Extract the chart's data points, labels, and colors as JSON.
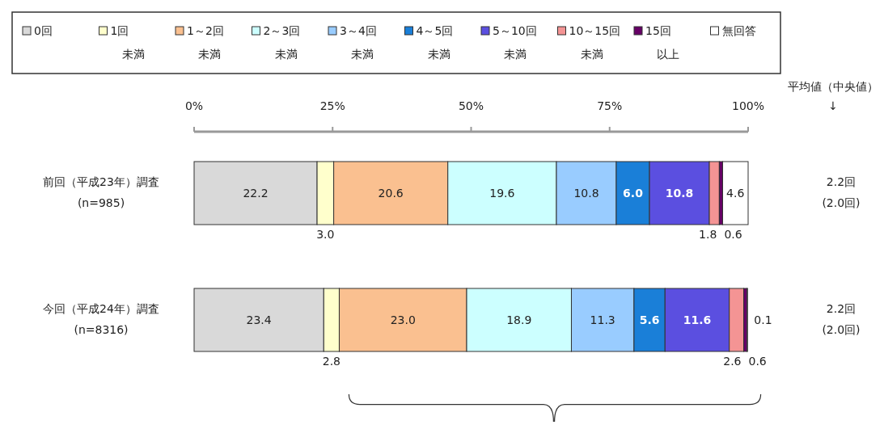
{
  "chart_data": {
    "type": "bar",
    "orientation": "horizontal",
    "stacked": true,
    "legend": "top",
    "grid": false,
    "categories": [
      "前回（平成23年）調査\n(n=985)",
      "今回（平成24年）調査\n(n=8316)"
    ],
    "xlim": [
      0,
      100
    ],
    "xticks": [
      {
        "value": 0,
        "label": "0%"
      },
      {
        "value": 25,
        "label": "25%"
      },
      {
        "value": 50,
        "label": "50%"
      },
      {
        "value": 75,
        "label": "75%"
      },
      {
        "value": 100,
        "label": "100%"
      }
    ],
    "series": [
      {
        "name": "0回",
        "color": "#d9d9d9",
        "values": [
          22.2,
          23.4
        ],
        "value_labels": [
          "22.2",
          "23.4"
        ]
      },
      {
        "name": "1回未満",
        "color": "#ffffcc",
        "values": [
          3.0,
          2.8
        ],
        "value_labels": [
          "3.0",
          "2.8"
        ]
      },
      {
        "name": "1～2回未満",
        "color": "#fac090",
        "values": [
          20.6,
          23.0
        ],
        "value_labels": [
          "20.6",
          "23.0"
        ]
      },
      {
        "name": "2～3回未満",
        "color": "#ccffff",
        "values": [
          19.6,
          18.9
        ],
        "value_labels": [
          "19.6",
          "18.9"
        ]
      },
      {
        "name": "3～4回未満",
        "color": "#99ccff",
        "values": [
          10.8,
          11.3
        ],
        "value_labels": [
          "10.8",
          "11.3"
        ]
      },
      {
        "name": "4～5回未満",
        "color": "#1a7fd8",
        "values": [
          6.0,
          5.6
        ],
        "value_labels": [
          "6.0",
          "5.6"
        ]
      },
      {
        "name": "5～10回未満",
        "color": "#5b4fe0",
        "values": [
          10.8,
          11.6
        ],
        "value_labels": [
          "10.8",
          "11.6"
        ]
      },
      {
        "name": "10～15回未満",
        "color": "#f49494",
        "values": [
          1.8,
          2.6
        ],
        "value_labels": [
          "1.8",
          "2.6"
        ]
      },
      {
        "name": "15回以上",
        "color": "#660066",
        "values": [
          0.6,
          0.6
        ],
        "value_labels": [
          "0.6",
          "0.6"
        ]
      },
      {
        "name": "無回答",
        "color": "#ffffff",
        "values": [
          4.6,
          0.1
        ],
        "value_labels": [
          "4.6",
          "0.1"
        ]
      }
    ],
    "annotations": [
      "平均値（中央値）\n↓",
      "2.2回\n(2.0回)",
      "2.2回\n(2.0回)"
    ]
  }
}
